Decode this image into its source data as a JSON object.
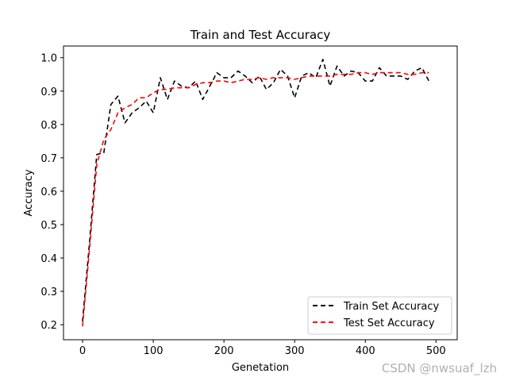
{
  "chart_data": {
    "type": "line",
    "title": "Train and Test Accuracy",
    "xlabel": "Genetation",
    "ylabel": "Accuracy",
    "xlim": [
      -27,
      530
    ],
    "ylim": [
      0.155,
      1.035
    ],
    "xticks": [
      0,
      100,
      200,
      300,
      400,
      500
    ],
    "yticks": [
      0.2,
      0.3,
      0.4,
      0.5,
      0.6,
      0.7,
      0.8,
      0.9,
      1.0
    ],
    "ytick_labels": [
      "0.2",
      "0.3",
      "0.4",
      "0.5",
      "0.6",
      "0.7",
      "0.8",
      "0.9",
      "1.0"
    ],
    "legend_position": "bottom-right",
    "x": [
      0,
      10,
      20,
      30,
      40,
      50,
      60,
      70,
      80,
      90,
      100,
      110,
      120,
      130,
      140,
      150,
      160,
      170,
      180,
      190,
      200,
      210,
      220,
      230,
      240,
      250,
      260,
      270,
      280,
      290,
      300,
      310,
      320,
      330,
      340,
      350,
      360,
      370,
      380,
      390,
      400,
      410,
      420,
      430,
      440,
      450,
      460,
      470,
      480,
      490
    ],
    "series": [
      {
        "name": "Train Set Accuracy",
        "color": "#000000",
        "dash": "6,4",
        "values": [
          0.21,
          0.45,
          0.71,
          0.715,
          0.86,
          0.885,
          0.805,
          0.835,
          0.85,
          0.87,
          0.835,
          0.94,
          0.875,
          0.93,
          0.915,
          0.91,
          0.93,
          0.875,
          0.915,
          0.955,
          0.94,
          0.94,
          0.96,
          0.945,
          0.925,
          0.945,
          0.905,
          0.925,
          0.965,
          0.945,
          0.88,
          0.945,
          0.955,
          0.94,
          0.995,
          0.915,
          0.975,
          0.945,
          0.96,
          0.955,
          0.93,
          0.93,
          0.97,
          0.945,
          0.945,
          0.945,
          0.935,
          0.96,
          0.97,
          0.93
        ]
      },
      {
        "name": "Test Set Accuracy",
        "color": "#ff0000",
        "dash": "6,4",
        "values": [
          0.195,
          0.43,
          0.68,
          0.755,
          0.785,
          0.835,
          0.85,
          0.86,
          0.88,
          0.88,
          0.895,
          0.905,
          0.905,
          0.91,
          0.91,
          0.91,
          0.92,
          0.925,
          0.925,
          0.93,
          0.93,
          0.925,
          0.93,
          0.935,
          0.935,
          0.94,
          0.935,
          0.94,
          0.94,
          0.94,
          0.935,
          0.94,
          0.945,
          0.945,
          0.945,
          0.945,
          0.95,
          0.95,
          0.95,
          0.955,
          0.955,
          0.95,
          0.955,
          0.955,
          0.955,
          0.955,
          0.95,
          0.95,
          0.955,
          0.955
        ]
      }
    ]
  },
  "watermark": "CSDN @nwsuaf_lzh"
}
